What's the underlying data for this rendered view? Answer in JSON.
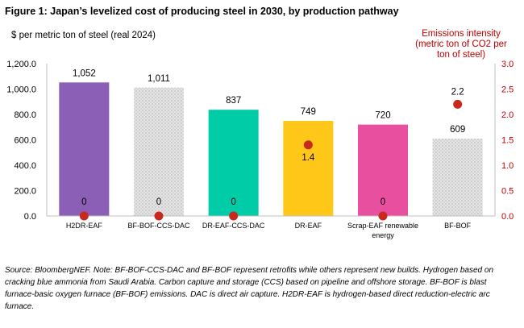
{
  "title": "Figure 1: Japan’s levelized cost of producing steel in 2030, by production pathway",
  "source": "Source: BloombergNEF. Note: BF-BOF-CCS-DAC and BF-BOF represent retrofits while others represent new builds. Hydrogen based on cracking blue ammonia from Saudi Arabia. Carbon capture and storage (CCS) based on pipeline and offshore storage. BF-BOF is blast furnace-basic oxygen furnace (BF-BOF) emissions. DAC is direct air capture. H2DR-EAF is hydrogen-based direct reduction-electric arc furnace.",
  "chart_data": {
    "type": "bar",
    "categories": [
      "H2DR-EAF",
      "BF-BOF-CCS-DAC",
      "DR-EAF-CCS-DAC",
      "DR-EAF",
      "Scrap-EAF renewable energy",
      "BF-BOF"
    ],
    "category_lines": [
      [
        "H2DR-EAF"
      ],
      [
        "BF-BOF-CCS-DAC"
      ],
      [
        "DR-EAF-CCS-DAC"
      ],
      [
        "DR-EAF"
      ],
      [
        "Scrap-EAF renewable",
        "energy"
      ],
      [
        "BF-BOF"
      ]
    ],
    "ylabel": "$ per metric ton of steel (real 2024)",
    "ylim": [
      0,
      1200
    ],
    "yticks": [
      0,
      200,
      400,
      600,
      800,
      1000,
      1200
    ],
    "ytick_labels": [
      "0.0",
      "200.0",
      "400.0",
      "600.0",
      "800.0",
      "1,000.0",
      "1,200.0"
    ],
    "y2label_lines": [
      "Emissions intensity",
      "(metric ton of CO2 per",
      "ton of steel)"
    ],
    "y2lim": [
      0,
      3.0
    ],
    "y2ticks": [
      0,
      0.5,
      1.0,
      1.5,
      2.0,
      2.5,
      3.0
    ],
    "y2tick_labels": [
      "0.0",
      "0.5",
      "1.0",
      "1.5",
      "2.0",
      "2.5",
      "3.0"
    ],
    "series": [
      {
        "type": "bar",
        "axis": "left",
        "values": [
          1052,
          1011,
          837,
          749,
          720,
          609
        ],
        "labels": [
          "1,052",
          "1,011",
          "837",
          "749",
          "720",
          "609"
        ],
        "colors": [
          "#8b5fb5",
          "#d6d6d6",
          "#00cca8",
          "#ffc819",
          "#e94f9f",
          "#e4e4e4"
        ],
        "patterned": [
          false,
          true,
          false,
          false,
          false,
          true
        ]
      },
      {
        "type": "scatter",
        "axis": "right",
        "values": [
          0,
          0,
          0,
          1.4,
          0,
          2.2
        ],
        "labels": [
          "0",
          "0",
          "0",
          "1.4",
          "0",
          "2.2"
        ],
        "color": "#c9281e"
      }
    ],
    "grid": false,
    "legend": "none"
  }
}
